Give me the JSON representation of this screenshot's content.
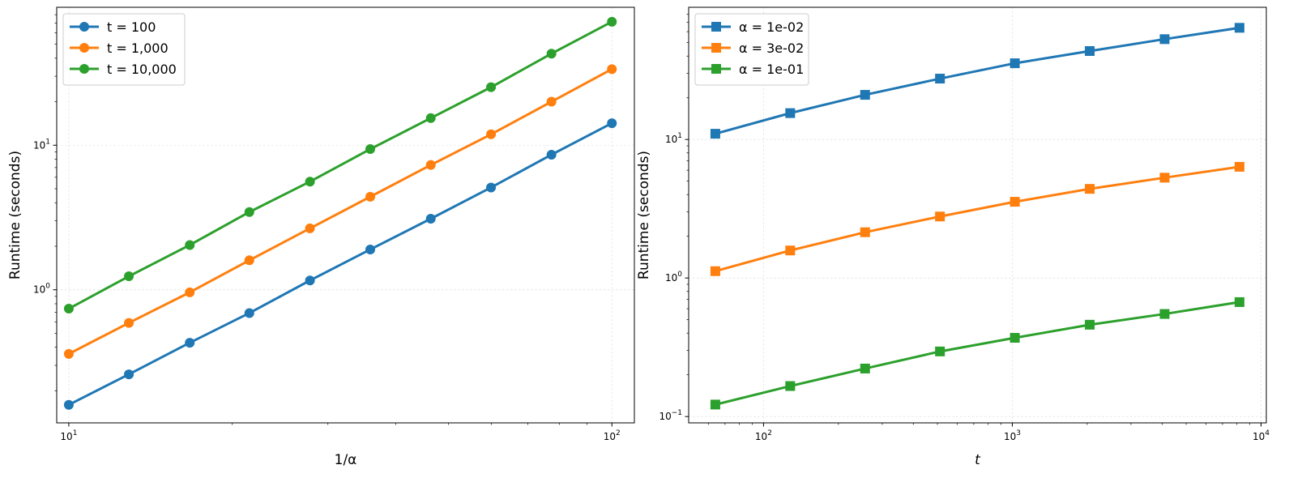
{
  "chart_data": [
    {
      "type": "line",
      "marker": "circle",
      "x_scale": "log",
      "y_scale": "log",
      "xlabel": "1/α",
      "ylabel": "Runtime (seconds)",
      "xlim": [
        9.5,
        110
      ],
      "ylim": [
        0.12,
        90
      ],
      "grid": true,
      "legend_position": "top-left",
      "x_ticks": [
        {
          "value": 10,
          "base": "10",
          "exp": "1"
        },
        {
          "value": 100,
          "base": "10",
          "exp": "2"
        }
      ],
      "y_ticks": [
        {
          "value": 1,
          "base": "10",
          "exp": "0"
        },
        {
          "value": 10,
          "base": "10",
          "exp": "1"
        }
      ],
      "x": [
        10,
        12.9,
        16.7,
        21.5,
        27.8,
        35.9,
        46.4,
        59.9,
        77.4,
        100
      ],
      "series": [
        {
          "name": "t = 100",
          "color": "#1f77b4",
          "values": [
            0.16,
            0.26,
            0.43,
            0.69,
            1.16,
            1.9,
            3.1,
            5.1,
            8.6,
            14.2
          ]
        },
        {
          "name": "t = 1,000",
          "color": "#ff7f0e",
          "values": [
            0.36,
            0.59,
            0.96,
            1.6,
            2.66,
            4.4,
            7.3,
            11.9,
            20.0,
            33.6
          ]
        },
        {
          "name": "t = 10,000",
          "color": "#2ca02c",
          "values": [
            0.74,
            1.24,
            2.04,
            3.45,
            5.6,
            9.4,
            15.4,
            25.2,
            43.0,
            71.5
          ]
        }
      ]
    },
    {
      "type": "line",
      "marker": "square",
      "x_scale": "log",
      "y_scale": "log",
      "xlabel": "t",
      "ylabel": "Runtime (seconds)",
      "xlim": [
        50,
        10500
      ],
      "ylim": [
        0.09,
        90
      ],
      "grid": true,
      "legend_position": "top-left",
      "x_ticks": [
        {
          "value": 100,
          "base": "10",
          "exp": "2"
        },
        {
          "value": 1000,
          "base": "10",
          "exp": "3"
        },
        {
          "value": 10000,
          "base": "10",
          "exp": "4"
        }
      ],
      "y_ticks": [
        {
          "value": 0.1,
          "base": "10",
          "exp": "−1"
        },
        {
          "value": 1,
          "base": "10",
          "exp": "0"
        },
        {
          "value": 10,
          "base": "10",
          "exp": "1"
        }
      ],
      "x": [
        64,
        128,
        256,
        512,
        1024,
        2048,
        4096,
        8192
      ],
      "series": [
        {
          "name": "α = 1e-02",
          "color": "#1f77b4",
          "values": [
            11.0,
            15.5,
            21.0,
            27.5,
            35.5,
            43.5,
            53.0,
            64.0
          ]
        },
        {
          "name": "α = 3e-02",
          "color": "#ff7f0e",
          "values": [
            1.12,
            1.58,
            2.14,
            2.78,
            3.55,
            4.4,
            5.3,
            6.35
          ]
        },
        {
          "name": "α = 1e-01",
          "color": "#2ca02c",
          "values": [
            0.122,
            0.166,
            0.222,
            0.295,
            0.37,
            0.46,
            0.55,
            0.67
          ]
        }
      ]
    }
  ]
}
